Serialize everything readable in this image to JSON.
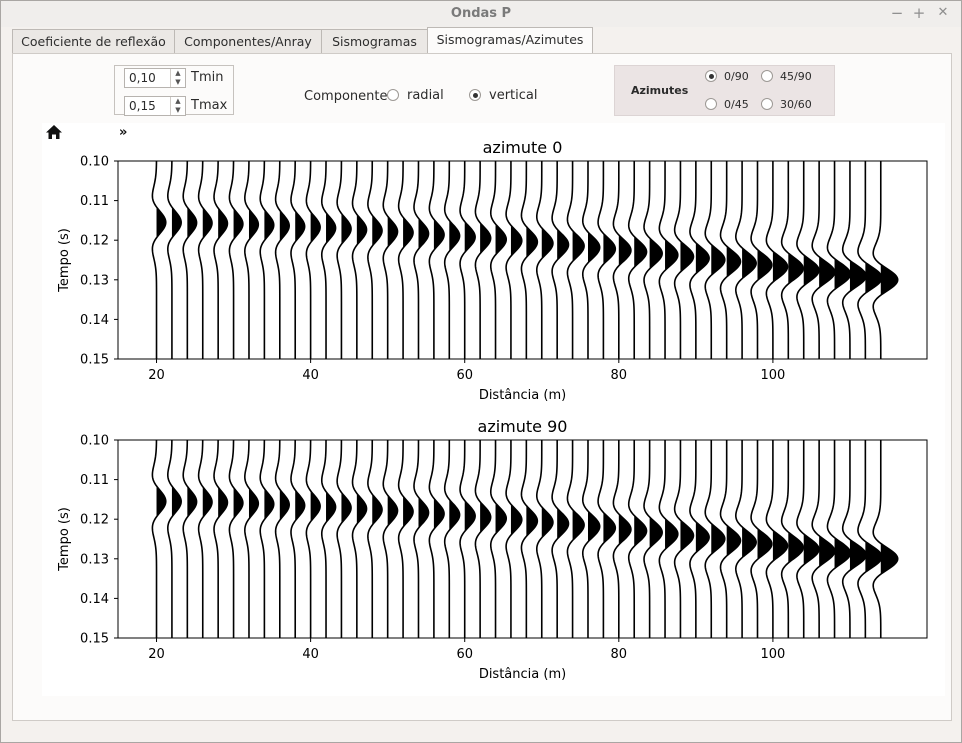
{
  "window": {
    "title": "Ondas P",
    "minimize": "−",
    "maximize": "+",
    "close": "✕"
  },
  "tabs": [
    {
      "label": "Coeficiente de reflexão",
      "active": false
    },
    {
      "label": "Componentes/Anray",
      "active": false
    },
    {
      "label": "Sismogramas",
      "active": false
    },
    {
      "label": "Sismogramas/Azimutes",
      "active": true
    }
  ],
  "controls": {
    "tmin_value": "0,10",
    "tmin_label": "Tmin",
    "tmax_value": "0,15",
    "tmax_label": "Tmax",
    "componente_label": "Componente",
    "radial_label": "radial",
    "vertical_label": "vertical",
    "selected_component": "vertical",
    "azimutes_label": "Azimutes",
    "azimute_options": [
      "0/90",
      "45/90",
      "0/45",
      "30/60"
    ],
    "selected_azimute": "0/90"
  },
  "plot_toolbar": {
    "home_icon": "home-icon",
    "more": "»"
  },
  "chart_data": [
    {
      "type": "seismogram-wiggle",
      "title": "azimute 0",
      "xlabel": "Distância (m)",
      "ylabel": "Tempo (s)",
      "xlim": [
        15,
        120
      ],
      "ylim": [
        0.15,
        0.1
      ],
      "xticks": [
        20,
        40,
        60,
        80,
        100
      ],
      "yticks": [
        0.1,
        0.11,
        0.12,
        0.13,
        0.14,
        0.15
      ],
      "ytick_labels": [
        "0.10",
        "0.11",
        "0.12",
        "0.13",
        "0.14",
        "0.15"
      ],
      "trace_offsets": [
        20,
        22,
        24,
        26,
        28,
        30,
        32,
        34,
        36,
        38,
        40,
        42,
        44,
        46,
        48,
        50,
        52,
        54,
        56,
        58,
        60,
        62,
        64,
        66,
        68,
        70,
        72,
        74,
        76,
        78,
        80,
        82,
        84,
        86,
        88,
        90,
        92,
        94,
        96,
        98,
        100,
        102,
        104,
        106,
        108,
        110,
        112,
        114
      ],
      "arrival_first_s": 0.1155,
      "arrival_last_s": 0.13,
      "wavelet_halfwidth_s": 0.0055,
      "amplitude_first_m": 1.2,
      "amplitude_last_m": 2.2,
      "fill": "positive-black"
    },
    {
      "type": "seismogram-wiggle",
      "title": "azimute 90",
      "xlabel": "Distância (m)",
      "ylabel": "Tempo (s)",
      "xlim": [
        15,
        120
      ],
      "ylim": [
        0.15,
        0.1
      ],
      "xticks": [
        20,
        40,
        60,
        80,
        100
      ],
      "yticks": [
        0.1,
        0.11,
        0.12,
        0.13,
        0.14,
        0.15
      ],
      "ytick_labels": [
        "0.10",
        "0.11",
        "0.12",
        "0.13",
        "0.14",
        "0.15"
      ],
      "trace_offsets": [
        20,
        22,
        24,
        26,
        28,
        30,
        32,
        34,
        36,
        38,
        40,
        42,
        44,
        46,
        48,
        50,
        52,
        54,
        56,
        58,
        60,
        62,
        64,
        66,
        68,
        70,
        72,
        74,
        76,
        78,
        80,
        82,
        84,
        86,
        88,
        90,
        92,
        94,
        96,
        98,
        100,
        102,
        104,
        106,
        108,
        110,
        112,
        114
      ],
      "arrival_first_s": 0.1155,
      "arrival_last_s": 0.13,
      "wavelet_halfwidth_s": 0.0055,
      "amplitude_first_m": 1.2,
      "amplitude_last_m": 2.2,
      "fill": "positive-black"
    }
  ]
}
